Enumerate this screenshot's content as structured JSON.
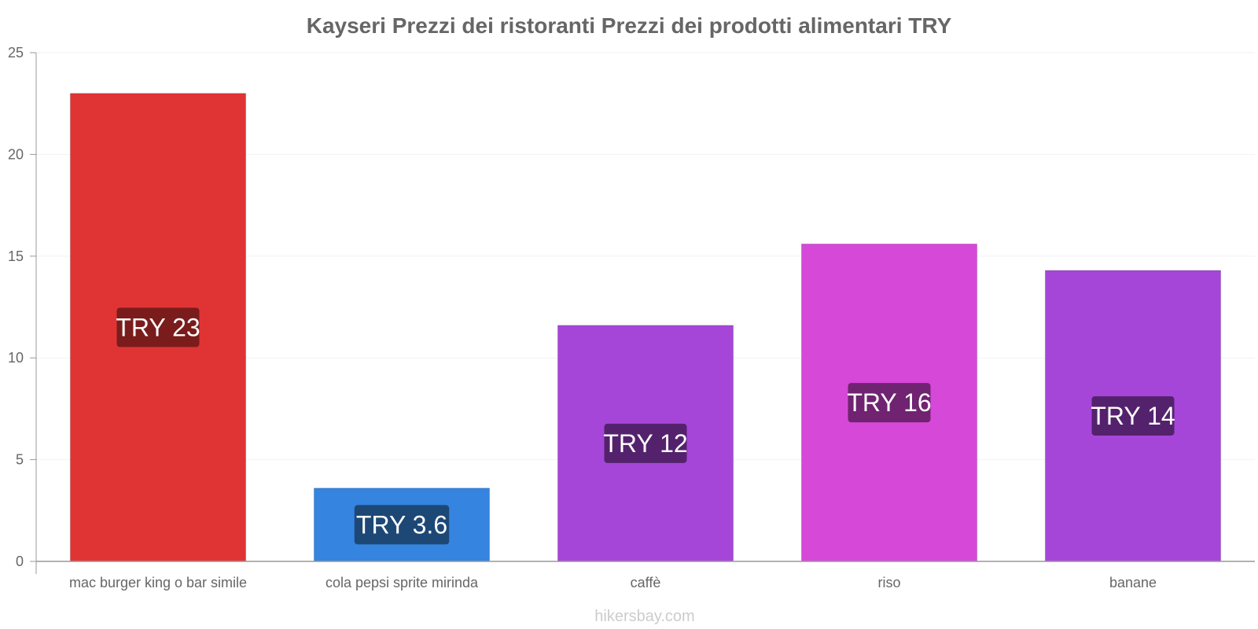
{
  "chart_data": {
    "type": "bar",
    "title": "Kayseri Prezzi dei ristoranti Prezzi dei prodotti alimentari TRY",
    "categories": [
      "mac burger king o bar simile",
      "cola pepsi sprite mirinda",
      "caffè",
      "riso",
      "banane"
    ],
    "values": [
      23,
      3.6,
      11.6,
      15.6,
      14.3
    ],
    "data_labels": [
      "TRY 23",
      "TRY 3.6",
      "TRY 12",
      "TRY 16",
      "TRY 14"
    ],
    "colors": [
      "#e03434",
      "#3584e0",
      "#a646d8",
      "#d648d8",
      "#a646d8"
    ],
    "label_bg_colors": [
      "#7a1c1c",
      "#1d4876",
      "#54226d",
      "#6f2370",
      "#54226d"
    ],
    "ylim": [
      0,
      25
    ],
    "yticks": [
      0,
      5,
      10,
      15,
      20,
      25
    ],
    "xlabel": "",
    "ylabel": "",
    "grid": true,
    "legend": "none"
  },
  "source": "hikersbay.com"
}
